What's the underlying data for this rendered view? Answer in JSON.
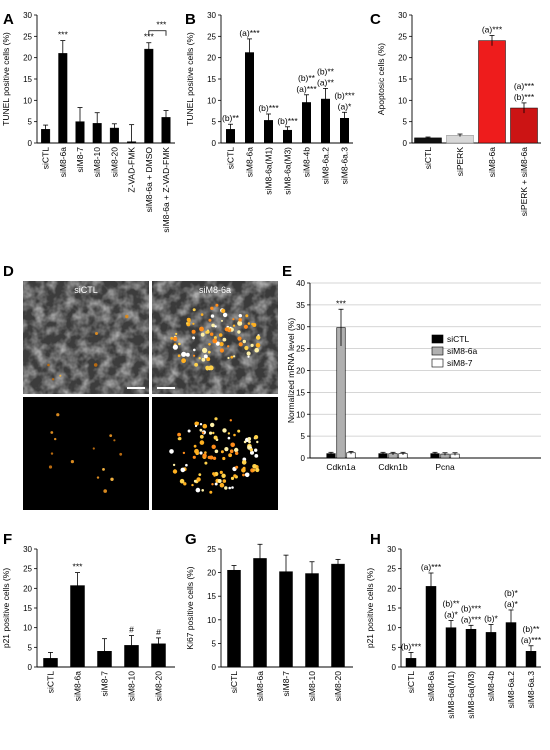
{
  "chart_data": [
    {
      "panel": "A",
      "type": "bar",
      "ylabel": "TUNEL positive cells (%)",
      "ylim": [
        0,
        30
      ],
      "yticks": [
        0,
        5,
        10,
        15,
        20,
        25,
        30
      ],
      "categories": [
        "siCTL",
        "siM8-6a",
        "siM8-7",
        "siM8-10",
        "siM8-20",
        "Z-VAD-FMK",
        "siM8-6a + DMSO",
        "siM8-6a + Z-VAD-FMK"
      ],
      "values": [
        3.2,
        21.0,
        5.0,
        4.6,
        3.5,
        0.3,
        22.0,
        6.0
      ],
      "errors": [
        1.0,
        3.0,
        3.3,
        2.5,
        1.0,
        4.0,
        1.5,
        1.6
      ],
      "colors": [
        "#000000",
        "#000000",
        "#000000",
        "#000000",
        "#000000",
        "#000000",
        "#000000",
        "#000000"
      ],
      "annotations": [
        {
          "index": 1,
          "text": "***"
        },
        {
          "index": 6,
          "text": "***"
        },
        {
          "bracket": [
            6,
            7
          ],
          "text": "***"
        }
      ]
    },
    {
      "panel": "B",
      "type": "bar",
      "ylabel": "TUNEL positive cells (%)",
      "ylim": [
        0,
        30
      ],
      "yticks": [
        0,
        5,
        10,
        15,
        20,
        25,
        30
      ],
      "categories": [
        "siCTL",
        "siM8-6a",
        "siM8-6a(M1)",
        "siM8-6a(M3)",
        "siM8-4b",
        "siM8-6a.2",
        "siM8-6a.3"
      ],
      "values": [
        3.2,
        21.2,
        5.3,
        3.0,
        9.5,
        10.3,
        5.8
      ],
      "errors": [
        1.2,
        3.2,
        1.5,
        0.8,
        1.8,
        2.5,
        1.4
      ],
      "colors": [
        "#000000",
        "#000000",
        "#000000",
        "#000000",
        "#000000",
        "#000000",
        "#000000"
      ],
      "annotations": [
        {
          "index": 0,
          "lines": [
            "(b)**"
          ]
        },
        {
          "index": 1,
          "lines": [
            "(a)***"
          ]
        },
        {
          "index": 2,
          "lines": [
            "(b)***"
          ]
        },
        {
          "index": 3,
          "lines": [
            "(b)***"
          ]
        },
        {
          "index": 4,
          "lines": [
            "(b)**",
            "(a)***"
          ]
        },
        {
          "index": 5,
          "lines": [
            "(b)**",
            "(a)**"
          ]
        },
        {
          "index": 6,
          "lines": [
            "(b)***",
            "(a)*"
          ]
        }
      ]
    },
    {
      "panel": "C",
      "type": "bar",
      "ylabel": "Apoptosic cells (%)",
      "ylim": [
        0,
        30
      ],
      "yticks": [
        0,
        5,
        10,
        15,
        20,
        25,
        30
      ],
      "categories": [
        "siCTL",
        "siPERK",
        "siM8-6a",
        "siPERK + siM8-6a"
      ],
      "values": [
        1.2,
        1.8,
        24.0,
        8.2
      ],
      "errors": [
        0.2,
        0.3,
        1.2,
        1.2
      ],
      "colors": [
        "#111111",
        "#d8d8d8",
        "#ee1c1c",
        "#cc1414"
      ],
      "annotations": [
        {
          "index": 2,
          "lines": [
            "(a)***"
          ]
        },
        {
          "index": 3,
          "lines": [
            "(a)***",
            "(b)***"
          ]
        }
      ]
    },
    {
      "panel": "E",
      "type": "bar",
      "ylabel": "Normalized mRNA level (%)",
      "ylim": [
        0,
        40
      ],
      "yticks": [
        0,
        5,
        10,
        15,
        20,
        25,
        30,
        35,
        40
      ],
      "categories": [
        "Cdkn1a",
        "Cdkn1b",
        "Pcna"
      ],
      "series": [
        {
          "name": "siCTL",
          "color": "#000000",
          "values": [
            1.0,
            1.0,
            1.0
          ],
          "errors": [
            0.3,
            0.3,
            0.3
          ]
        },
        {
          "name": "siM8-6a",
          "color": "#b0b0b0",
          "values": [
            29.8,
            1.0,
            0.9
          ],
          "errors": [
            4.2,
            0.3,
            0.3
          ]
        },
        {
          "name": "siM8-7",
          "color": "#ffffff",
          "values": [
            1.2,
            1.0,
            0.9
          ],
          "errors": [
            0.3,
            0.3,
            0.3
          ]
        }
      ],
      "legend": "right",
      "annotations": [
        {
          "category": 0,
          "text": "***"
        }
      ]
    },
    {
      "panel": "F",
      "type": "bar",
      "ylabel": "p21 positive cells (%)",
      "ylim": [
        0,
        30
      ],
      "yticks": [
        0,
        5,
        10,
        15,
        20,
        25,
        30
      ],
      "categories": [
        "siCTL",
        "siM8-6a",
        "siM8-7",
        "siM8-10",
        "siM8-20"
      ],
      "values": [
        2.2,
        20.7,
        4.0,
        5.5,
        5.9
      ],
      "errors": [
        1.5,
        3.3,
        3.2,
        2.5,
        1.5
      ],
      "colors": [
        "#000000",
        "#000000",
        "#000000",
        "#000000",
        "#000000"
      ],
      "annotations": [
        {
          "index": 1,
          "text": "***"
        },
        {
          "index": 3,
          "text": "#"
        },
        {
          "index": 4,
          "text": "#"
        }
      ]
    },
    {
      "panel": "G",
      "type": "bar",
      "ylabel": "Ki67 positive cells (%)",
      "ylim": [
        0,
        25
      ],
      "yticks": [
        0,
        5,
        10,
        15,
        20,
        25
      ],
      "categories": [
        "siCTL",
        "siM8-6a",
        "siM8-7",
        "siM8-10",
        "siM8-20"
      ],
      "values": [
        20.5,
        23.0,
        20.2,
        19.8,
        21.8
      ],
      "errors": [
        1.0,
        3.0,
        3.5,
        2.5,
        1.0
      ],
      "colors": [
        "#000000",
        "#000000",
        "#000000",
        "#000000",
        "#000000"
      ],
      "annotations": []
    },
    {
      "panel": "H",
      "type": "bar",
      "ylabel": "p21 positive cells (%)",
      "ylim": [
        0,
        30
      ],
      "yticks": [
        0,
        5,
        10,
        15,
        20,
        25,
        30
      ],
      "categories": [
        "siCTL",
        "siM8-6a",
        "siM8-6a(M1)",
        "siM8-6a(M3)",
        "siM8-4b",
        "siM8-6a.2",
        "siM8-6a.3"
      ],
      "values": [
        2.2,
        20.5,
        10.0,
        9.6,
        8.8,
        11.3,
        4.0
      ],
      "errors": [
        1.5,
        3.4,
        1.8,
        1.0,
        2.0,
        3.2,
        1.4
      ],
      "colors": [
        "#000000",
        "#000000",
        "#000000",
        "#000000",
        "#000000",
        "#000000",
        "#000000"
      ],
      "annotations": [
        {
          "index": 0,
          "lines": [
            "(b)***"
          ]
        },
        {
          "index": 1,
          "lines": [
            "(a)***"
          ]
        },
        {
          "index": 2,
          "lines": [
            "(b)**",
            "(a)*"
          ]
        },
        {
          "index": 3,
          "lines": [
            "(b)***",
            "(a)***"
          ]
        },
        {
          "index": 4,
          "lines": [
            "(b)*"
          ]
        },
        {
          "index": 5,
          "lines": [
            "(b)*",
            "(a)*"
          ]
        },
        {
          "index": 6,
          "lines": [
            "(b)**",
            "(a)***"
          ]
        }
      ]
    }
  ],
  "panel_labels": {
    "a": "A",
    "b": "B",
    "c": "C",
    "d": "D",
    "e": "E",
    "f": "F",
    "g": "G",
    "h": "H"
  },
  "micrograph": {
    "left_label": "siCTL",
    "right_label": "siM8-6a"
  }
}
